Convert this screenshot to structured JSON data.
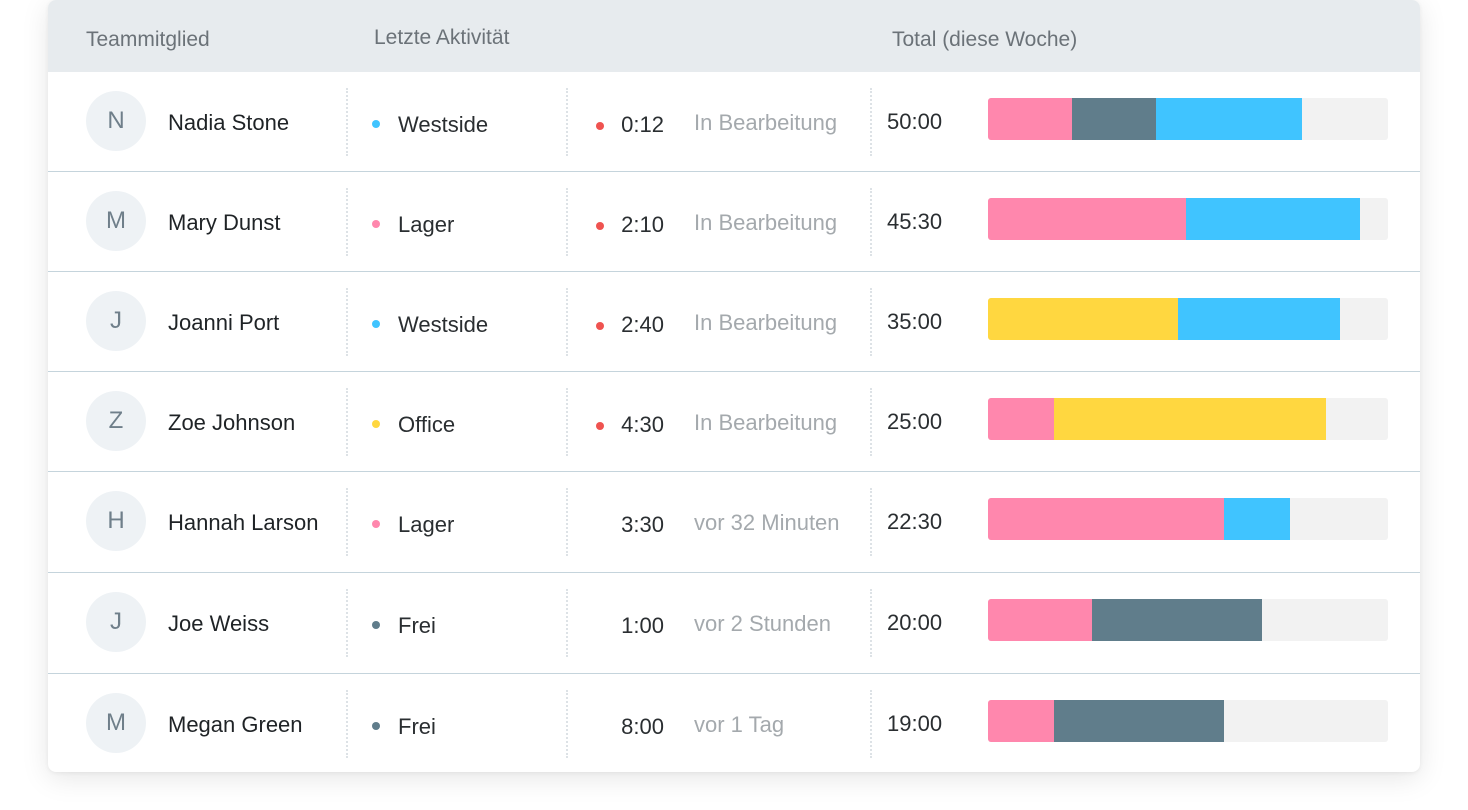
{
  "header": {
    "member": "Teammitglied",
    "activity": "Letzte Aktivität",
    "total": "Total (diese Woche)"
  },
  "colors": {
    "Westside": "#40c4ff",
    "Lager": "#ff87ad",
    "Office": "#ffd740",
    "Frei": "#607d8b",
    "active_dot": "#ef5350",
    "track": "#f2f2f2"
  },
  "rows": [
    {
      "initial": "N",
      "name": "Nadia Stone",
      "location": "Westside",
      "duration": "0:12",
      "status": "In Bearbeitung",
      "active": true,
      "total": "50:00",
      "segments": [
        {
          "type": "Lager",
          "hours": 10.5
        },
        {
          "type": "Frei",
          "hours": 10.5
        },
        {
          "type": "Westside",
          "hours": 18.3
        }
      ]
    },
    {
      "initial": "M",
      "name": "Mary Dunst",
      "location": "Lager",
      "duration": "2:10",
      "status": "In Bearbeitung",
      "active": true,
      "total": "45:30",
      "segments": [
        {
          "type": "Lager",
          "hours": 24.7
        },
        {
          "type": "Westside",
          "hours": 21.7
        }
      ]
    },
    {
      "initial": "J",
      "name": "Joanni Port",
      "location": "Westside",
      "duration": "2:40",
      "status": "In Bearbeitung",
      "active": true,
      "total": "35:00",
      "segments": [
        {
          "type": "Office",
          "hours": 23.7
        },
        {
          "type": "Westside",
          "hours": 20.3
        }
      ]
    },
    {
      "initial": "Z",
      "name": "Zoe Johnson",
      "location": "Office",
      "duration": "4:30",
      "status": "In Bearbeitung",
      "active": true,
      "total": "25:00",
      "segments": [
        {
          "type": "Lager",
          "hours": 8.3
        },
        {
          "type": "Office",
          "hours": 34.0
        }
      ]
    },
    {
      "initial": "H",
      "name": "Hannah Larson",
      "location": "Lager",
      "duration": "3:30",
      "status": "vor 32 Minuten",
      "active": false,
      "total": "22:30",
      "segments": [
        {
          "type": "Lager",
          "hours": 29.5
        },
        {
          "type": "Westside",
          "hours": 8.2
        }
      ]
    },
    {
      "initial": "J",
      "name": "Joe Weiss",
      "location": "Frei",
      "duration": "1:00",
      "status": "vor 2 Stunden",
      "active": false,
      "total": "20:00",
      "segments": [
        {
          "type": "Lager",
          "hours": 13.0
        },
        {
          "type": "Frei",
          "hours": 21.3
        }
      ]
    },
    {
      "initial": "M",
      "name": "Megan Green",
      "location": "Frei",
      "duration": "8:00",
      "status": "vor 1 Tag",
      "active": false,
      "total": "19:00",
      "segments": [
        {
          "type": "Lager",
          "hours": 8.3
        },
        {
          "type": "Frei",
          "hours": 21.3
        }
      ]
    }
  ],
  "bar_scale_hours": 50
}
